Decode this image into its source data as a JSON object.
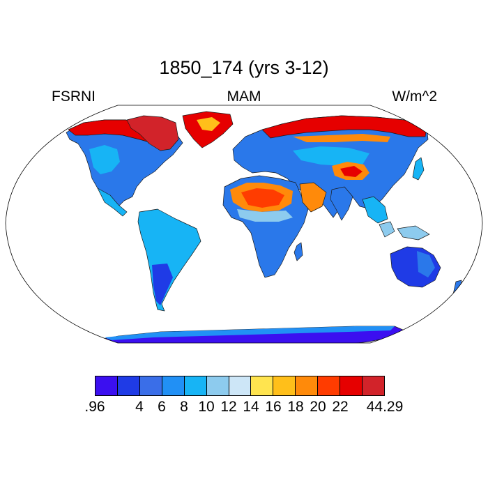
{
  "title": "1850_174 (yrs 3-12)",
  "left_label": "FSRNI",
  "center_label": "MAM",
  "right_label": "W/m^2",
  "map": {
    "projection": "robinson",
    "ocean_color": "#ffffff",
    "outline_color": "#000000"
  },
  "colorbar": {
    "colors": [
      "#3b0ff0",
      "#1f3be6",
      "#3a6ee8",
      "#2190f5",
      "#17b4f5",
      "#8dcbee",
      "#cde6f7",
      "#ffe44f",
      "#ffbf1a",
      "#ff8a0a",
      "#ff3c00",
      "#e60000",
      "#d2232a"
    ],
    "tick_labels": [
      ".96",
      "4",
      "6",
      "8",
      "10",
      "12",
      "14",
      "16",
      "18",
      "20",
      "22",
      "44.29"
    ],
    "tick_label_positions": [
      0,
      2,
      3,
      4,
      5,
      6,
      7,
      8,
      9,
      10,
      11,
      13
    ]
  }
}
